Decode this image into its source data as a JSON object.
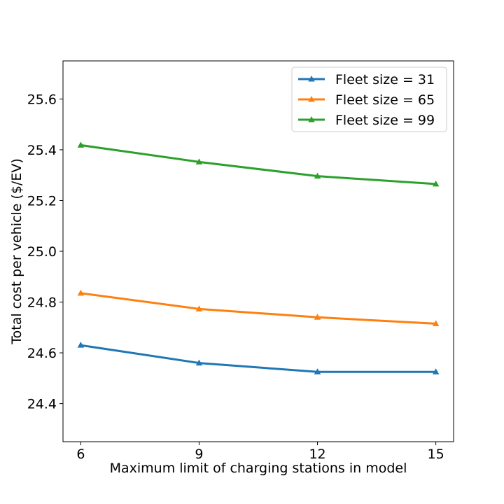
{
  "chart_data": {
    "type": "line",
    "title": "",
    "xlabel": "Maximum limit of charging stations in model",
    "ylabel": "Total cost per vehicle ($/EV)",
    "x": [
      6,
      9,
      12,
      15
    ],
    "x_tick_labels": [
      "6",
      "9",
      "12",
      "15"
    ],
    "xlim": [
      5.55,
      15.45
    ],
    "ylim": [
      24.25,
      25.75
    ],
    "y_ticks": [
      24.4,
      24.6,
      24.8,
      25.0,
      25.2,
      25.4,
      25.6
    ],
    "y_tick_labels": [
      "24.4",
      "24.6",
      "24.8",
      "25.0",
      "25.2",
      "25.4",
      "25.6"
    ],
    "grid": false,
    "legend_position": "top-right",
    "marker": "triangle",
    "series": [
      {
        "name": "Fleet size = 31",
        "color": "#1f77b4",
        "values": [
          24.63,
          24.56,
          24.525,
          24.525
        ]
      },
      {
        "name": "Fleet size = 65",
        "color": "#ff7f0e",
        "values": [
          24.835,
          24.773,
          24.74,
          24.715
        ]
      },
      {
        "name": "Fleet size = 99",
        "color": "#2ca02c",
        "values": [
          25.418,
          25.352,
          25.296,
          25.265
        ]
      }
    ]
  }
}
